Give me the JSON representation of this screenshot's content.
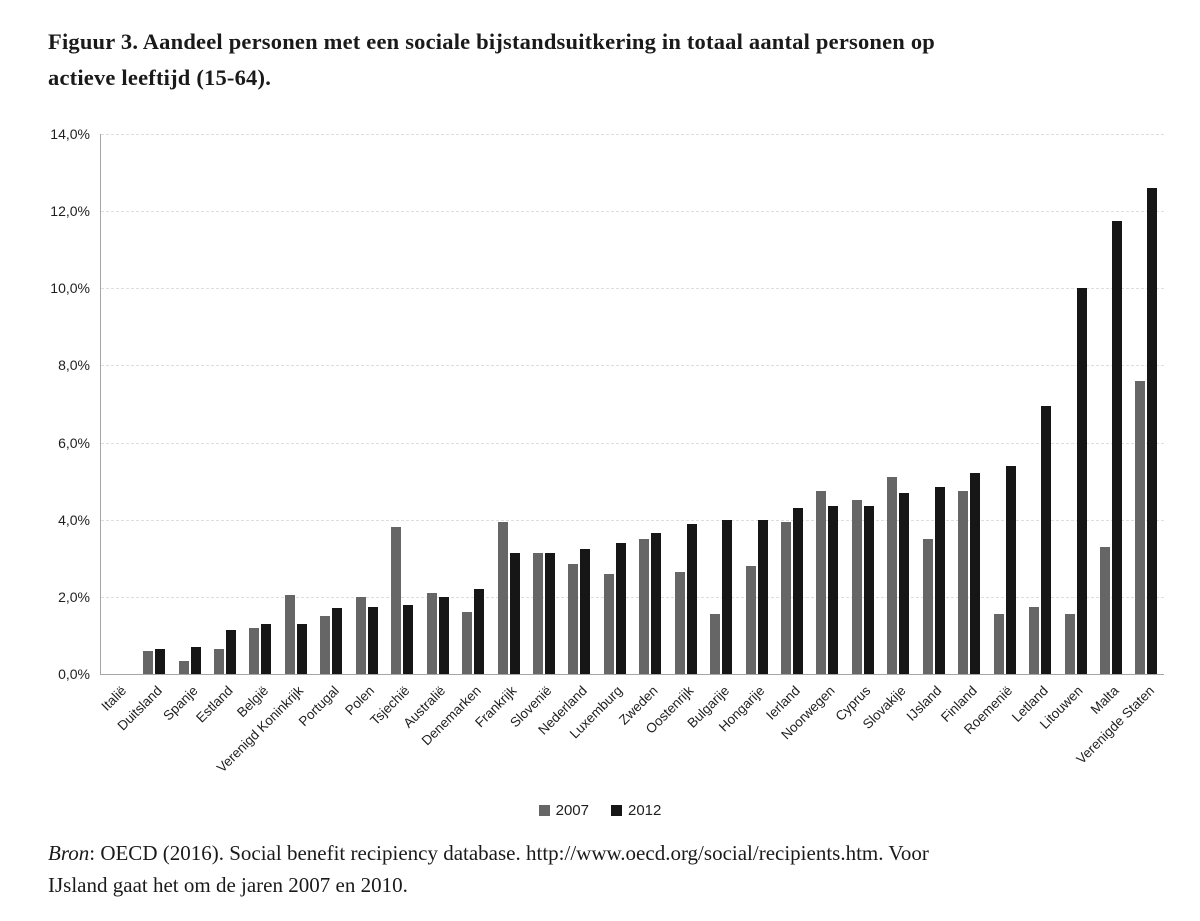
{
  "figure": {
    "title_line1": "Figuur 3. Aandeel personen met een sociale bijstandsuitkering in totaal aantal personen op",
    "title_line2": "actieve leeftijd (15-64).",
    "source": {
      "bron_label": "Bron",
      "line1_rest": ": OECD (2016). Social benefit recipiency database. http://www.oecd.org/social/recipients.htm. Voor",
      "line2": "IJsland gaat het om de jaren 2007 en 2010."
    }
  },
  "chart_data": {
    "type": "bar",
    "title": "Figuur 3. Aandeel personen met een sociale bijstandsuitkering in totaal aantal personen op actieve leeftijd (15-64).",
    "xlabel": "",
    "ylabel": "",
    "ylim": [
      0,
      14
    ],
    "ytick_step": 2,
    "ytick_labels": [
      "0,0%",
      "2,0%",
      "4,0%",
      "6,0%",
      "8,0%",
      "10,0%",
      "12,0%",
      "14,0%"
    ],
    "grid": "horizontal-dashed",
    "legend_position": "bottom-center",
    "categories": [
      "Italië",
      "Duitsland",
      "Spanje",
      "Estland",
      "België",
      "Verenigd Koninkrijk",
      "Portugal",
      "Polen",
      "Tsjechië",
      "Australië",
      "Denemarken",
      "Frankrijk",
      "Slovenië",
      "Nederland",
      "Luxemburg",
      "Zweden",
      "Oostenrijk",
      "Bulgarije",
      "Hongarije",
      "Ierland",
      "Noorwegen",
      "Cyprus",
      "Slovakije",
      "IJsland",
      "Finland",
      "Roemenië",
      "Letland",
      "Litouwen",
      "Malta",
      "Verenigde Staten"
    ],
    "series": [
      {
        "name": "2007",
        "color": "#666666",
        "values": [
          0,
          0.6,
          0.35,
          0.65,
          1.2,
          2.05,
          1.5,
          2.0,
          3.8,
          2.1,
          1.6,
          3.95,
          3.15,
          2.85,
          2.6,
          3.5,
          2.65,
          1.55,
          2.8,
          3.95,
          4.75,
          4.5,
          5.1,
          3.5,
          4.75,
          1.55,
          1.75,
          1.55,
          3.3,
          7.6
        ]
      },
      {
        "name": "2012",
        "color": "#161616",
        "values": [
          0,
          0.65,
          0.7,
          1.15,
          1.3,
          1.3,
          1.7,
          1.75,
          1.8,
          2.0,
          2.2,
          3.15,
          3.15,
          3.25,
          3.4,
          3.65,
          3.9,
          4.0,
          4.0,
          4.3,
          4.35,
          4.35,
          4.7,
          4.85,
          5.2,
          5.4,
          6.95,
          10.0,
          11.75,
          12.6
        ]
      }
    ]
  }
}
